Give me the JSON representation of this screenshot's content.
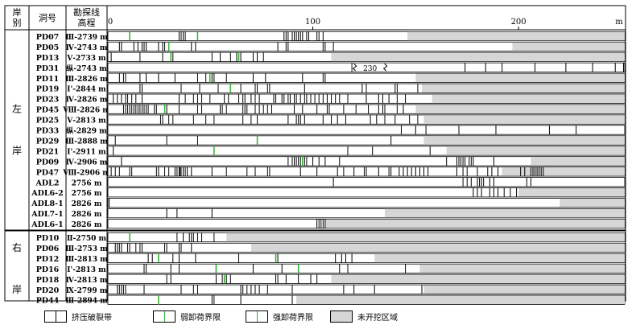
{
  "header": {
    "bank": "岸别",
    "tunnel": "洞号",
    "elevation": "勘探线\n高程"
  },
  "sections": [
    {
      "name": "左\n岸",
      "rows": [
        {
          "id": "PD07",
          "elev": "Ⅲ-2739 m",
          "excavated_to": 146,
          "cracks": [
            35,
            36,
            37,
            38,
            86,
            87,
            88,
            90,
            91,
            92,
            93,
            94,
            95,
            97,
            98,
            102,
            103,
            105
          ],
          "weak": [
            11,
            44
          ],
          "strong": []
        },
        {
          "id": "PD05",
          "elev": "Ⅳ-2743 m",
          "excavated_to": 197,
          "cracks": [
            6,
            7,
            13,
            15,
            17,
            18,
            19,
            25,
            27,
            28,
            41,
            43,
            83,
            87,
            88,
            105,
            106,
            110
          ],
          "weak": [
            30
          ],
          "strong": []
        },
        {
          "id": "PD13",
          "elev": "Ⅴ-2733 m",
          "excavated_to": 109,
          "cracks": [
            2,
            16,
            27,
            31,
            32,
            51,
            55,
            60,
            63,
            64,
            65,
            71,
            73,
            76
          ],
          "weak": [
            31,
            64
          ],
          "strong": []
        },
        {
          "id": "PD31",
          "elev": "纵-2743 m",
          "excavated_to": 252,
          "cracks": [
            119,
            174,
            184,
            192,
            208,
            223,
            236,
            247,
            251
          ],
          "weak": [],
          "strong": [],
          "break_at": 120,
          "break_label": "230"
        },
        {
          "id": "PD11",
          "elev": "Ⅲ-2826 m",
          "excavated_to": 150,
          "cracks": [
            6,
            8,
            9,
            16,
            19,
            25,
            33,
            44,
            48,
            51,
            52,
            58,
            71,
            77,
            95,
            105,
            106
          ],
          "weak": [
            50
          ],
          "strong": []
        },
        {
          "id": "PD19",
          "elev": "Ⅰ'-2844 m",
          "excavated_to": 153,
          "cracks": [
            16,
            17,
            36,
            45,
            54,
            65,
            72,
            73,
            78,
            79,
            96,
            124,
            126,
            140,
            141,
            151
          ],
          "weak": [
            60
          ],
          "strong": []
        },
        {
          "id": "PD23",
          "elev": "Ⅳ-2826 m",
          "excavated_to": 158,
          "cracks": [
            3,
            5,
            7,
            9,
            10,
            12,
            14,
            17,
            35,
            38,
            42,
            44,
            46,
            50,
            57,
            59,
            64,
            66,
            67,
            70,
            72,
            74,
            81,
            82,
            85,
            86,
            88,
            89,
            91,
            92,
            94,
            96,
            97,
            99,
            101,
            103,
            105,
            107,
            109,
            111,
            113,
            117,
            126,
            132,
            134,
            137,
            141,
            145
          ],
          "weak": [],
          "strong": []
        },
        {
          "id": "PD45",
          "elev": "Ⅷ-2826 m",
          "excavated_to": 150,
          "cracks": [
            8,
            9,
            10,
            11,
            12,
            13,
            14,
            15,
            16,
            17,
            18,
            19,
            20,
            23,
            24,
            28,
            29,
            35,
            44,
            46,
            55,
            56,
            58,
            66,
            67,
            68,
            72,
            74,
            76,
            78,
            80,
            91,
            95,
            102,
            107,
            108,
            115,
            121,
            127,
            132,
            134,
            135,
            141,
            144
          ],
          "weak": [
            28
          ],
          "strong": []
        },
        {
          "id": "PD25",
          "elev": "Ⅴ-2813 m",
          "excavated_to": 154,
          "cracks": [
            26,
            27,
            30,
            32,
            42,
            48,
            52,
            66,
            70,
            73,
            88,
            92,
            93,
            94,
            96,
            105,
            109,
            112,
            116,
            128,
            131,
            135,
            140,
            147,
            151
          ],
          "weak": [],
          "strong": []
        },
        {
          "id": "PD33",
          "elev": "纵-2829 m",
          "excavated_to": 252,
          "cracks": [
            143,
            150,
            155,
            171,
            189,
            215,
            228,
            252
          ],
          "weak": [],
          "strong": []
        },
        {
          "id": "PD29",
          "elev": "Ⅲ-2888 m",
          "excavated_to": 154,
          "cracks": [
            4,
            29,
            44,
            138
          ],
          "weak": [
            73
          ],
          "strong": []
        },
        {
          "id": "PD21",
          "elev": "Ⅰ'-2911 m",
          "excavated_to": 165,
          "cracks": [
            3,
            117,
            129,
            157
          ],
          "weak": [
            52
          ],
          "strong": []
        },
        {
          "id": "PD09",
          "elev": "Ⅳ-2906 m",
          "excavated_to": 206,
          "cracks": [
            7,
            88,
            90,
            91,
            92,
            93,
            94,
            95,
            96,
            97,
            100,
            103,
            106,
            113,
            165,
            170,
            171,
            172,
            173,
            174,
            176,
            177,
            178,
            188
          ],
          "weak": [
            95
          ],
          "strong": []
        },
        {
          "id": "PD47",
          "elev": "Ⅷ-2906 m",
          "excavated_to": 192,
          "cracks": [
            2,
            4,
            6,
            11,
            12,
            24,
            25,
            28,
            30,
            33,
            34,
            35,
            35.5,
            36,
            37,
            38,
            39,
            41,
            51,
            58,
            68,
            72,
            78,
            79,
            94,
            102,
            112,
            115,
            120,
            125,
            126,
            132,
            137,
            138,
            142,
            144,
            146,
            148,
            150,
            152,
            154,
            156,
            170,
            173,
            175,
            180,
            185,
            187,
            190,
            201,
            203,
            206,
            207,
            208,
            209,
            210,
            211,
            212
          ],
          "weak": [],
          "strong": []
        },
        {
          "id": "ADL2",
          "elev": "2756 m",
          "excavated_to": 252,
          "cracks": [
            110,
            173,
            175,
            177,
            180,
            181,
            182,
            183,
            186,
            188,
            204,
            206
          ],
          "weak": [],
          "strong": []
        },
        {
          "id": "ADL6-2",
          "elev": "2756 m",
          "excavated_to": 200,
          "cracks": [
            178,
            180,
            182,
            186,
            188,
            190,
            193,
            196,
            199
          ],
          "weak": [],
          "strong": []
        },
        {
          "id": "ADL8-1",
          "elev": "2826 m",
          "excavated_to": 220,
          "cracks": [
            1
          ],
          "weak": [],
          "strong": []
        },
        {
          "id": "ADL7-1",
          "elev": "2826 m",
          "excavated_to": 135,
          "cracks": [
            29,
            34,
            51
          ],
          "weak": [],
          "strong": []
        },
        {
          "id": "ADL6-1",
          "elev": "2826 m",
          "excavated_to": 106,
          "cracks": [
            102,
            103,
            104,
            105,
            106
          ],
          "weak": [],
          "strong": []
        }
      ]
    },
    {
      "name": "右\n岸",
      "rows": [
        {
          "id": "PD10",
          "elev": "Ⅱ-2750 m",
          "excavated_to": 58,
          "cracks": [
            34,
            37,
            40,
            41,
            42,
            44,
            46,
            52
          ],
          "weak": [
            11
          ],
          "strong": []
        },
        {
          "id": "PD06",
          "elev": "Ⅲ-2753 m",
          "excavated_to": 70,
          "cracks": [
            4,
            5,
            6,
            7,
            10,
            11,
            14,
            16,
            17,
            28,
            29,
            35,
            36,
            41
          ],
          "weak": [],
          "strong": []
        },
        {
          "id": "PD12",
          "elev": "Ⅲ-2813 m",
          "excavated_to": 130,
          "cracks": [
            20,
            22,
            32,
            35,
            43,
            64,
            82,
            83,
            111,
            114,
            116,
            119
          ],
          "weak": [
            25,
            82
          ],
          "strong": []
        },
        {
          "id": "PD16",
          "elev": "Ⅰ'-2813 m",
          "excavated_to": 152,
          "cracks": [
            18,
            19,
            31,
            35,
            53,
            71,
            85,
            113,
            117,
            145
          ],
          "weak": [
            53,
            93
          ],
          "strong": []
        },
        {
          "id": "PD18",
          "elev": "Ⅳ-2813 m",
          "excavated_to": 109,
          "cracks": [
            29,
            31,
            53,
            56,
            57,
            58,
            60,
            82,
            83,
            87,
            93,
            99,
            102
          ],
          "weak": [
            57
          ],
          "strong": []
        },
        {
          "id": "PD20",
          "elev": "Ⅸ-2799 m",
          "excavated_to": 154,
          "cracks": [
            5,
            6,
            7,
            8,
            9,
            18,
            36,
            42,
            44,
            65,
            66,
            68,
            70,
            72,
            74,
            78,
            90,
            115,
            120,
            130,
            153
          ],
          "weak": [],
          "strong": []
        },
        {
          "id": "PD44",
          "elev": "Ⅲ-2894 m",
          "excavated_to": 92,
          "cracks": [
            51,
            52,
            65,
            90
          ],
          "weak": [
            25
          ],
          "strong": []
        }
      ]
    }
  ],
  "axis": {
    "unit": "m",
    "ticks": [
      0,
      100,
      200
    ],
    "max": 252
  },
  "legend": [
    {
      "label": "挤压破裂带",
      "kind": "crack"
    },
    {
      "label": "弱卸荷界限",
      "kind": "weak"
    },
    {
      "label": "强卸荷界限",
      "kind": "strong"
    },
    {
      "label": "未开挖区域",
      "kind": "unexcavated"
    }
  ],
  "colors": {
    "unexcavated": "#d6d6d6",
    "weak_line": "#2fae2f",
    "strong_line": "#2fae2f",
    "crack": "#000000",
    "border": "#000000"
  },
  "chart_data": {
    "type": "table",
    "x_unit": "m",
    "x_ticks": [
      0,
      100,
      200
    ],
    "series_kinds": [
      "挤压破裂带",
      "弱卸荷界限",
      "强卸荷界限",
      "未开挖区域"
    ]
  }
}
